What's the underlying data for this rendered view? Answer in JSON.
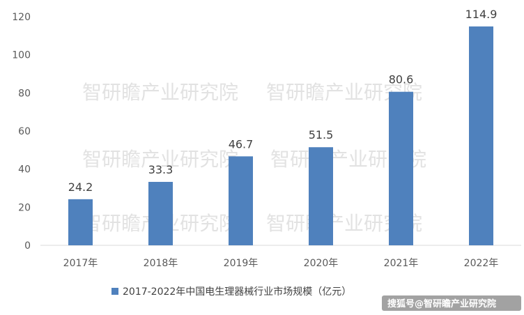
{
  "chart_data": {
    "type": "bar",
    "categories": [
      "2017年",
      "2018年",
      "2019年",
      "2020年",
      "2021年",
      "2022年"
    ],
    "series": [
      {
        "name": "2017-2022年中国电生理器械行业市场规模（亿元）",
        "values": [
          24.2,
          33.3,
          46.7,
          51.5,
          80.6,
          114.9
        ],
        "color": "#4f81bd"
      }
    ],
    "data_labels": [
      "24.2",
      "33.3",
      "46.7",
      "51.5",
      "80.6",
      "114.9"
    ],
    "yticks": [
      "0",
      "20",
      "40",
      "60",
      "80",
      "100",
      "120"
    ],
    "ylim": [
      0,
      120
    ],
    "grid": false,
    "legend_position": "bottom"
  },
  "watermark": "智研瞻产业研究院",
  "credit": "搜狐号@智研瞻产业研究院"
}
